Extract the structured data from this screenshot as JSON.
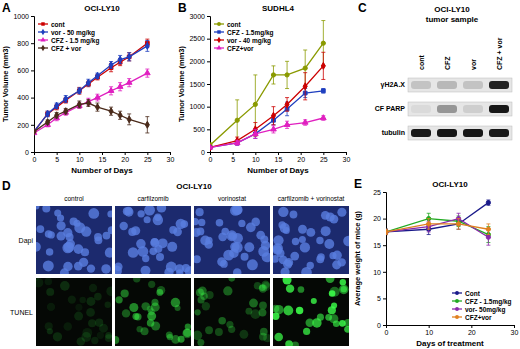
{
  "chart_data": [
    {
      "type": "line",
      "panel": "A",
      "title": "OCI-LY10",
      "xlabel": "Number of Days",
      "ylabel": "Tumor Volume (mm3)",
      "x": [
        0,
        3,
        5,
        7,
        10,
        12,
        14,
        17,
        19,
        21,
        25
      ],
      "xlim": [
        0,
        30
      ],
      "xticks": [
        0,
        5,
        10,
        15,
        20,
        25,
        30
      ],
      "ylim": [
        0,
        1000
      ],
      "yticks": [
        0,
        200,
        400,
        600,
        800,
        1000
      ],
      "legend": "upper left",
      "series": [
        {
          "name": "cont",
          "color": "#cc0000",
          "marker": "square",
          "values": [
            150,
            280,
            330,
            380,
            450,
            500,
            550,
            620,
            660,
            700,
            800
          ],
          "errors": [
            10,
            20,
            20,
            20,
            25,
            20,
            20,
            30,
            25,
            30,
            30
          ]
        },
        {
          "name": "vor - 50 mg/kg",
          "color": "#1f3fbf",
          "marker": "diamond",
          "values": [
            150,
            280,
            340,
            390,
            450,
            510,
            560,
            640,
            680,
            700,
            780
          ],
          "errors": [
            10,
            20,
            20,
            25,
            20,
            25,
            20,
            25,
            30,
            30,
            40
          ]
        },
        {
          "name": "CFZ - 1.5 mg/kg",
          "color": "#e020c0",
          "marker": "triangle",
          "values": [
            140,
            200,
            250,
            290,
            340,
            370,
            400,
            450,
            480,
            510,
            580
          ],
          "errors": [
            10,
            15,
            20,
            20,
            20,
            25,
            25,
            30,
            30,
            30,
            30
          ]
        },
        {
          "name": "CFZ + vor",
          "color": "#4a2a1a",
          "marker": "diamond",
          "values": [
            150,
            220,
            270,
            300,
            350,
            360,
            330,
            300,
            270,
            240,
            200
          ],
          "errors": [
            10,
            15,
            20,
            20,
            25,
            25,
            30,
            30,
            30,
            40,
            60
          ]
        }
      ]
    },
    {
      "type": "line",
      "panel": "B",
      "title": "SUDHL4",
      "xlabel": "Number of Days",
      "ylabel": "Tumor Volume (mm3)",
      "x": [
        0,
        6,
        10,
        14,
        17,
        21,
        25
      ],
      "xlim": [
        0,
        30
      ],
      "xticks": [
        0,
        5,
        10,
        15,
        20,
        25,
        30
      ],
      "ylim": [
        0,
        3000
      ],
      "yticks": [
        0,
        500,
        1000,
        1500,
        2000,
        2500,
        3000
      ],
      "legend": "upper left",
      "series": [
        {
          "name": "cont",
          "color": "#8a9a00",
          "marker": "circle",
          "values": [
            150,
            700,
            1050,
            1700,
            1700,
            1850,
            2400
          ],
          "errors": [
            50,
            450,
            650,
            200,
            300,
            400,
            500
          ]
        },
        {
          "name": "CFZ - 1.5mg/kg",
          "color": "#1f3fbf",
          "marker": "square",
          "values": [
            100,
            200,
            400,
            700,
            950,
            1300,
            1350
          ],
          "errors": [
            20,
            50,
            100,
            100,
            150,
            100,
            50
          ]
        },
        {
          "name": "vor - 40 mg/kg",
          "color": "#cc0000",
          "marker": "diamond",
          "values": [
            100,
            250,
            500,
            800,
            1050,
            1450,
            1900
          ],
          "errors": [
            20,
            80,
            150,
            200,
            150,
            300,
            300
          ]
        },
        {
          "name": "CFZ+vor",
          "color": "#e020c0",
          "marker": "triangle",
          "values": [
            100,
            200,
            400,
            500,
            600,
            650,
            750
          ],
          "errors": [
            20,
            50,
            100,
            80,
            80,
            60,
            50
          ]
        }
      ]
    },
    {
      "type": "line",
      "panel": "E",
      "title": "OCI-LY10",
      "xlabel": "Days of treatment",
      "ylabel": "Average weight of mice (g)",
      "x": [
        0,
        10,
        17,
        24
      ],
      "xlim": [
        0,
        30
      ],
      "xticks": [
        0,
        10,
        20,
        30
      ],
      "ylim": [
        0,
        25
      ],
      "yticks": [
        0,
        5,
        10,
        15,
        20,
        25
      ],
      "legend": "lower right",
      "series": [
        {
          "name": "Cont",
          "color": "#1a1a8a",
          "marker": "circle",
          "values": [
            17.5,
            18,
            19,
            23
          ],
          "errors": [
            0.5,
            1,
            1,
            0.5
          ]
        },
        {
          "name": "CFZ - 1.5mg/kg",
          "color": "#22aa22",
          "marker": "circle",
          "values": [
            17.5,
            20,
            19.5,
            17
          ],
          "errors": [
            0.5,
            1,
            1,
            1.5
          ]
        },
        {
          "name": "vor- 50mg/kg",
          "color": "#8a2aaa",
          "marker": "circle",
          "values": [
            17.5,
            18.5,
            20,
            16.5
          ],
          "errors": [
            0.5,
            1,
            1,
            1.5
          ]
        },
        {
          "name": "CFZ+vor",
          "color": "#e08020",
          "marker": "circle",
          "values": [
            17.5,
            19,
            19,
            18
          ],
          "errors": [
            0.5,
            1,
            1,
            1
          ]
        }
      ]
    }
  ],
  "blot": {
    "panel": "C",
    "title": "OCI-LY10",
    "subtitle": "tumor sample",
    "lanes": [
      "cont",
      "CFZ",
      "vor",
      "CFZ + vor"
    ],
    "rows": [
      {
        "name": "γH2A.X",
        "intensities": [
          0.15,
          0.2,
          0.15,
          0.85
        ]
      },
      {
        "name": "CF PARP",
        "intensities": [
          0.05,
          0.35,
          0.1,
          0.9
        ]
      },
      {
        "name": "tubulin",
        "intensities": [
          0.9,
          0.9,
          0.9,
          0.9
        ]
      }
    ]
  },
  "microscopy": {
    "panel": "D",
    "title": "OCI-LY10",
    "columns": [
      "control",
      "carfilzomib",
      "vorinostat",
      "carfilzomib + vorinostat"
    ],
    "rows": [
      "Dapi",
      "TUNEL"
    ],
    "tunel_intensity": [
      0.15,
      0.55,
      0.4,
      0.9
    ]
  }
}
